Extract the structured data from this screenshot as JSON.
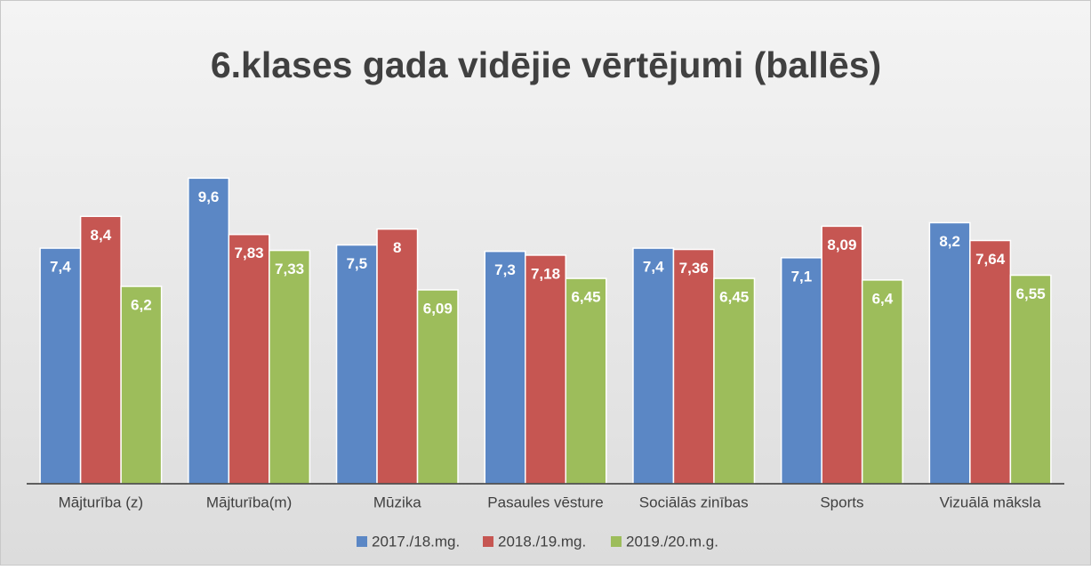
{
  "chart_data": {
    "type": "bar",
    "title": "6.klases gada vidējie vērtējumi (ballēs)",
    "categories": [
      "Mājturība (z)",
      "Mājturība(m)",
      "Mūzika",
      "Pasaules vēsture",
      "Sociālās zinības",
      "Sports",
      "Vizuālā māksla"
    ],
    "series": [
      {
        "name": "2017./18.mg.",
        "color": "#5b87c5",
        "values": [
          7.4,
          9.6,
          7.5,
          7.3,
          7.4,
          7.1,
          8.2
        ],
        "value_labels": [
          "7,4",
          "9,6",
          "7,5",
          "7,3",
          "7,4",
          "7,1",
          "8,2"
        ]
      },
      {
        "name": "2018./19.mg.",
        "color": "#c65652",
        "values": [
          8.4,
          7.83,
          8,
          7.18,
          7.36,
          8.09,
          7.64
        ],
        "value_labels": [
          "8,4",
          "7,83",
          "8",
          "7,18",
          "7,36",
          "8,09",
          "7,64"
        ]
      },
      {
        "name": "2019./20.m.g.",
        "color": "#9dbd5b",
        "values": [
          6.2,
          7.33,
          6.09,
          6.45,
          6.45,
          6.4,
          6.55
        ],
        "value_labels": [
          "6,2",
          "7,33",
          "6,09",
          "6,45",
          "6,45",
          "6,4",
          "6,55"
        ]
      }
    ],
    "ylim": [
      0,
      10
    ],
    "legend": "bottom"
  }
}
